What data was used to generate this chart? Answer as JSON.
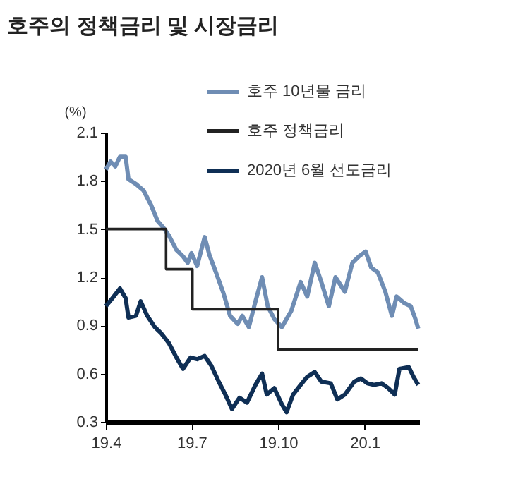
{
  "chart_data": {
    "type": "line",
    "title": "호주의 정책금리 및 시장금리",
    "ylabel": "(%)",
    "xlim": [
      "2019-04-01",
      "2020-02-28"
    ],
    "xticks": [
      {
        "value": "2019-04-01",
        "label": "19.4"
      },
      {
        "value": "2019-07-01",
        "label": "19.7"
      },
      {
        "value": "2019-10-01",
        "label": "19.10"
      },
      {
        "value": "2020-01-01",
        "label": "20.1"
      }
    ],
    "ylim": [
      0.3,
      2.1
    ],
    "yticks": [
      0.3,
      0.6,
      0.9,
      1.2,
      1.5,
      1.8,
      2.1
    ],
    "grid": false,
    "legend": "top right",
    "marker": "none",
    "line_style": "solid",
    "series": [
      {
        "name": "호주 10년물 금리",
        "color": "#6f8db4",
        "x": [
          "2019-04-01",
          "2019-04-06",
          "2019-04-11",
          "2019-04-16",
          "2019-04-22",
          "2019-04-25",
          "2019-05-03",
          "2019-05-11",
          "2019-05-19",
          "2019-05-26",
          "2019-06-01",
          "2019-06-07",
          "2019-06-15",
          "2019-06-22",
          "2019-06-27",
          "2019-07-01",
          "2019-07-07",
          "2019-07-15",
          "2019-07-20",
          "2019-07-27",
          "2019-08-04",
          "2019-08-11",
          "2019-08-19",
          "2019-08-24",
          "2019-08-31",
          "2019-09-07",
          "2019-09-14",
          "2019-09-20",
          "2019-09-27",
          "2019-10-05",
          "2019-10-15",
          "2019-10-25",
          "2019-11-01",
          "2019-11-09",
          "2019-11-16",
          "2019-11-24",
          "2019-12-01",
          "2019-12-11",
          "2019-12-19",
          "2019-12-26",
          "2020-01-02",
          "2020-01-08",
          "2020-01-15",
          "2020-01-23",
          "2020-01-30",
          "2020-02-04",
          "2020-02-12",
          "2020-02-19",
          "2020-02-24",
          "2020-02-27"
        ],
        "values": [
          1.87,
          1.92,
          1.89,
          1.95,
          1.95,
          1.81,
          1.78,
          1.74,
          1.65,
          1.55,
          1.51,
          1.46,
          1.37,
          1.33,
          1.29,
          1.35,
          1.27,
          1.45,
          1.34,
          1.23,
          1.1,
          0.96,
          0.91,
          0.96,
          0.89,
          1.05,
          1.2,
          1.02,
          0.94,
          0.89,
          0.99,
          1.17,
          1.08,
          1.29,
          1.17,
          1.02,
          1.2,
          1.11,
          1.29,
          1.33,
          1.36,
          1.26,
          1.23,
          1.11,
          0.96,
          1.08,
          1.04,
          1.02,
          0.94,
          0.88
        ]
      },
      {
        "name": "호주 정책금리",
        "type": "step",
        "color": "#222222",
        "x": [
          "2019-04-01",
          "2019-06-04",
          "2019-07-02",
          "2019-10-01",
          "2020-02-27"
        ],
        "values": [
          1.5,
          1.25,
          1.0,
          0.75,
          0.75
        ]
      },
      {
        "name": "2020년 6월 선도금리",
        "color": "#0f2f55",
        "x": [
          "2019-04-01",
          "2019-04-08",
          "2019-04-16",
          "2019-04-22",
          "2019-04-25",
          "2019-05-03",
          "2019-05-08",
          "2019-05-15",
          "2019-05-23",
          "2019-05-30",
          "2019-06-07",
          "2019-06-15",
          "2019-06-22",
          "2019-06-30",
          "2019-07-07",
          "2019-07-15",
          "2019-07-22",
          "2019-07-30",
          "2019-08-06",
          "2019-08-13",
          "2019-08-21",
          "2019-08-29",
          "2019-09-07",
          "2019-09-14",
          "2019-09-19",
          "2019-09-27",
          "2019-10-05",
          "2019-10-10",
          "2019-10-17",
          "2019-10-25",
          "2019-11-01",
          "2019-11-09",
          "2019-11-16",
          "2019-11-26",
          "2019-12-03",
          "2019-12-11",
          "2019-12-21",
          "2019-12-28",
          "2020-01-04",
          "2020-01-11",
          "2020-01-19",
          "2020-01-26",
          "2020-02-02",
          "2020-02-07",
          "2020-02-17",
          "2020-02-22",
          "2020-02-27"
        ],
        "values": [
          1.02,
          1.07,
          1.13,
          1.07,
          0.95,
          0.96,
          1.05,
          0.96,
          0.89,
          0.85,
          0.79,
          0.7,
          0.63,
          0.7,
          0.69,
          0.71,
          0.65,
          0.55,
          0.47,
          0.38,
          0.45,
          0.42,
          0.53,
          0.6,
          0.47,
          0.51,
          0.41,
          0.36,
          0.47,
          0.53,
          0.58,
          0.61,
          0.55,
          0.54,
          0.44,
          0.47,
          0.55,
          0.57,
          0.54,
          0.53,
          0.54,
          0.51,
          0.47,
          0.63,
          0.64,
          0.58,
          0.53
        ]
      }
    ]
  }
}
